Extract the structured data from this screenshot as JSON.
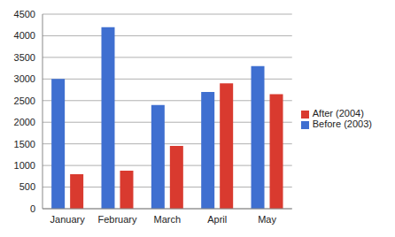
{
  "chart_data": {
    "type": "bar",
    "categories": [
      "January",
      "February",
      "March",
      "April",
      "May"
    ],
    "series": [
      {
        "name": "Before (2003)",
        "color": "#3f6fd0",
        "values": [
          3000,
          4200,
          2400,
          2700,
          3300
        ]
      },
      {
        "name": "After (2004)",
        "color": "#d93a2f",
        "values": [
          800,
          880,
          1450,
          2900,
          2650
        ]
      }
    ],
    "ylim": [
      0,
      4500
    ],
    "yticks": [
      0,
      500,
      1000,
      1500,
      2000,
      2500,
      3000,
      3500,
      4000,
      4500
    ],
    "grid": true,
    "legend": "right"
  }
}
